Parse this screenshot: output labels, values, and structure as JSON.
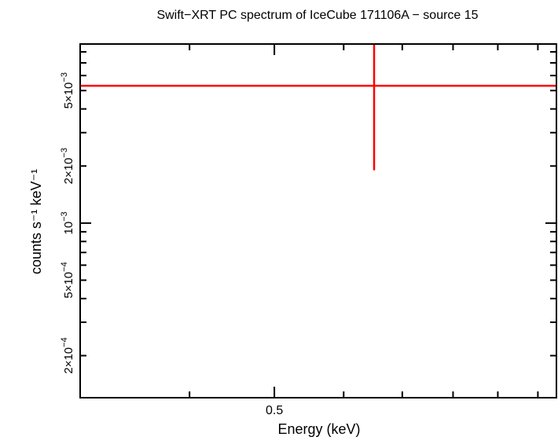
{
  "chart_data": {
    "type": "scatter",
    "title": "Swift−XRT PC spectrum of IceCube 171106A − source 15",
    "xlabel": "Energy (keV)",
    "ylabel": "counts s⁻¹ keV⁻¹",
    "x_scale": "log",
    "y_scale": "log",
    "xlim": [
      0.3,
      1.05
    ],
    "ylim": [
      0.00012,
      0.0088
    ],
    "x_tick_labels": [
      {
        "value": 0.5,
        "label": "0.5"
      }
    ],
    "y_tick_labels": [
      {
        "value": 0.005,
        "mantissa": "5×10",
        "exp": "−3"
      },
      {
        "value": 0.002,
        "mantissa": "2×10",
        "exp": "−3"
      },
      {
        "value": 0.001,
        "mantissa": "10",
        "exp": "−3"
      },
      {
        "value": 0.0005,
        "mantissa": "5×10",
        "exp": "−4"
      },
      {
        "value": 0.0002,
        "mantissa": "2×10",
        "exp": "−4"
      }
    ],
    "series": [
      {
        "color": "#ff0000",
        "points": [
          {
            "x": 0.65,
            "y": 0.0053,
            "xerr_low": 0.3,
            "xerr_high": 1.05,
            "yerr_low": 0.0019,
            "yerr_high": 0.0088
          }
        ]
      }
    ]
  }
}
